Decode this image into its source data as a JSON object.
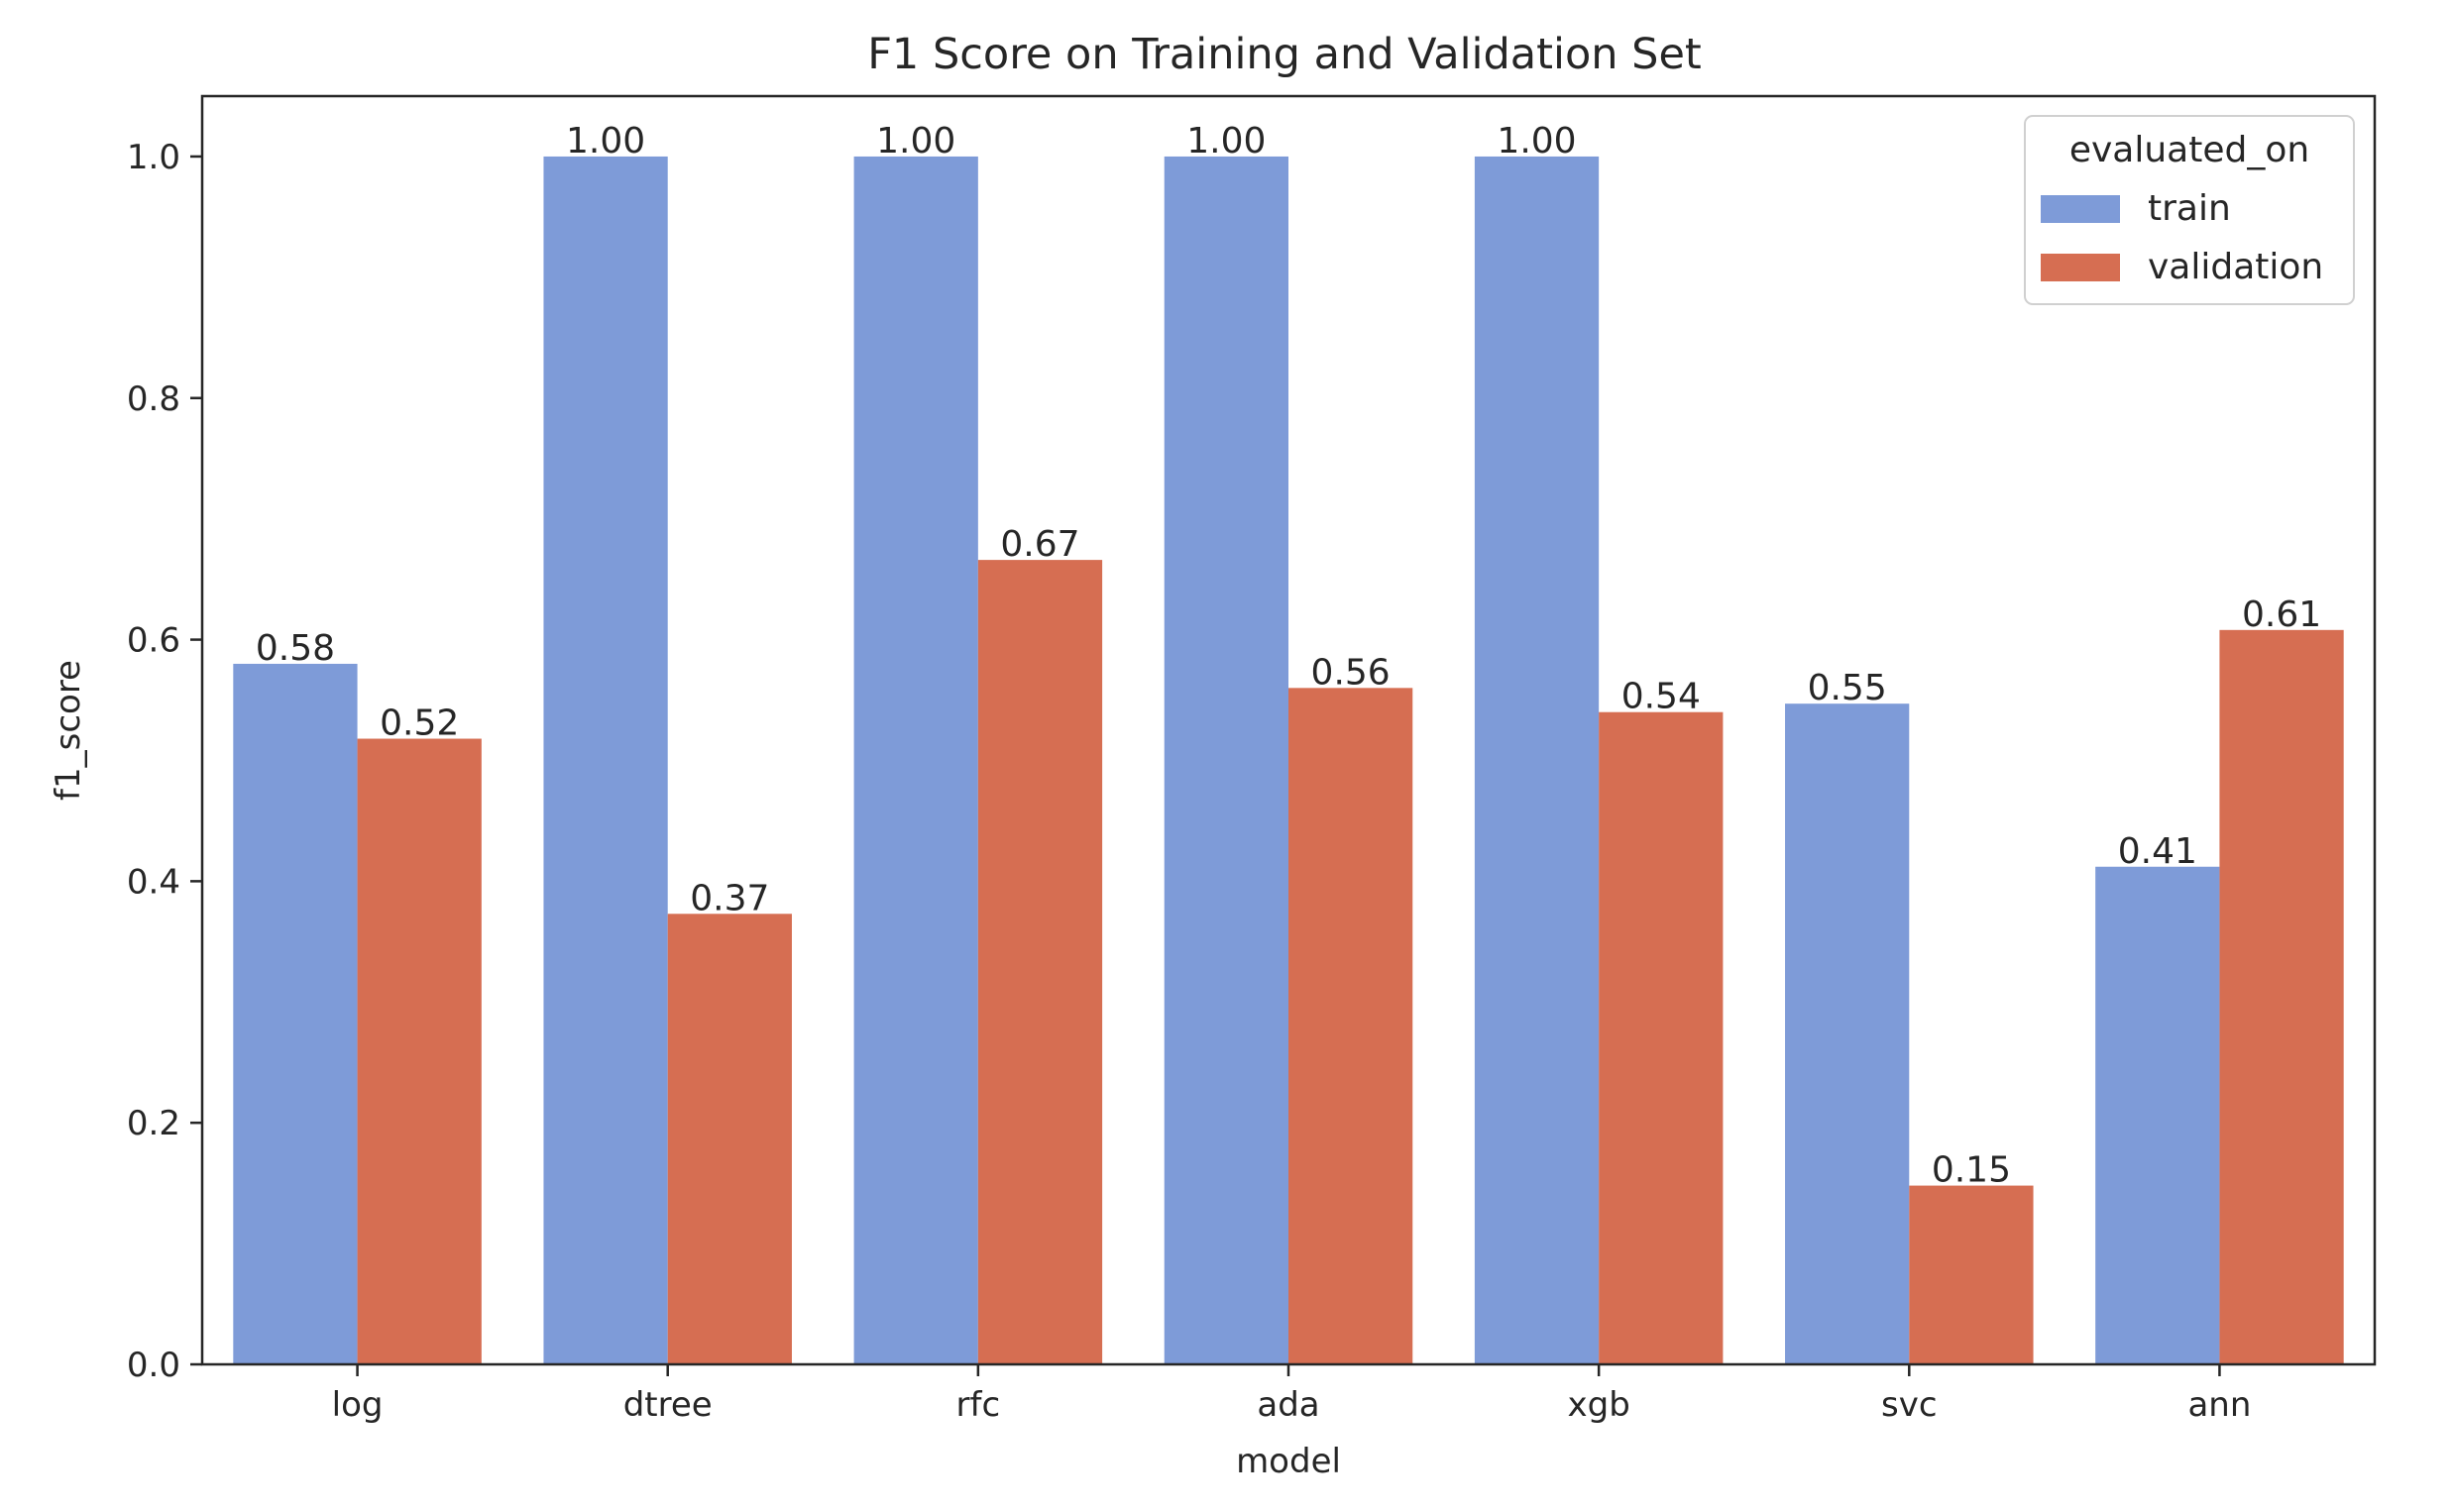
{
  "chart_data": {
    "type": "bar",
    "title": "F1 Score on Training and Validation Set",
    "xlabel": "model",
    "ylabel": "f1_score",
    "categories": [
      "log",
      "dtree",
      "rfc",
      "ada",
      "xgb",
      "svc",
      "ann"
    ],
    "series": [
      {
        "name": "train",
        "color": "#7e9bd8",
        "values": [
          0.58,
          1.0,
          1.0,
          1.0,
          1.0,
          0.547,
          0.412
        ],
        "labels": [
          "0.58",
          "1.00",
          "1.00",
          "1.00",
          "1.00",
          "0.55",
          "0.41"
        ]
      },
      {
        "name": "validation",
        "color": "#d66e52",
        "values": [
          0.518,
          0.373,
          0.666,
          0.56,
          0.54,
          0.148,
          0.608
        ],
        "labels": [
          "0.52",
          "0.37",
          "0.67",
          "0.56",
          "0.54",
          "0.15",
          "0.61"
        ]
      }
    ],
    "ylim": [
      0,
      1.05
    ],
    "yticks": [
      "0.0",
      "0.2",
      "0.4",
      "0.6",
      "0.8",
      "1.0"
    ],
    "legend": {
      "title": "evaluated_on",
      "placement": "top-right"
    },
    "grid": false
  }
}
